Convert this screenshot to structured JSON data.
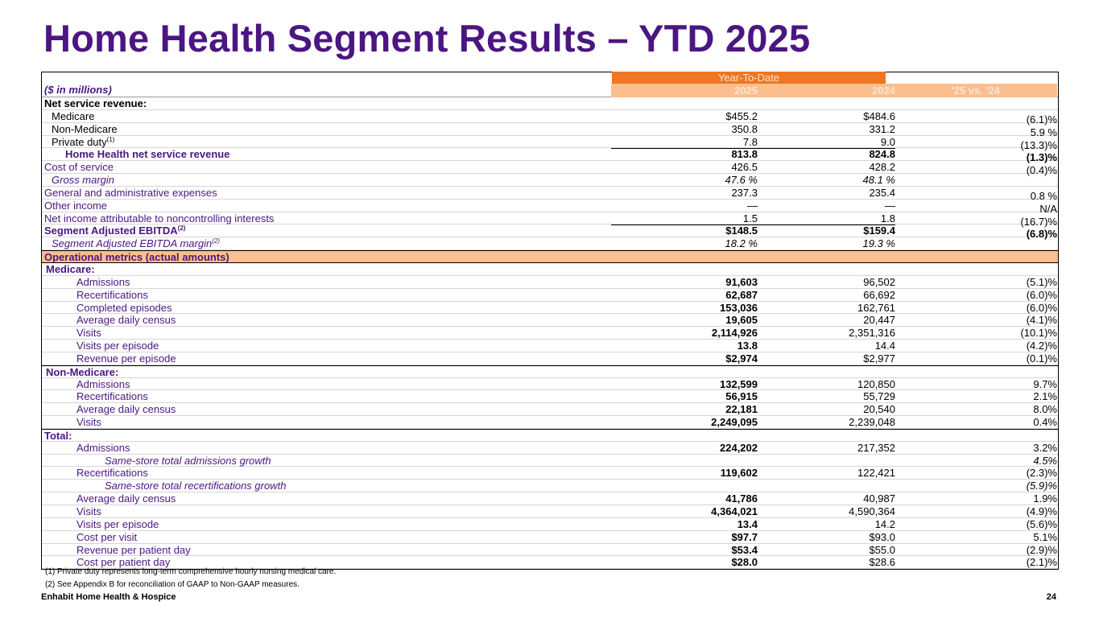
{
  "title": "Home Health Segment Results – YTD 2025",
  "header": {
    "units_label": "($ in millions)",
    "period_label": "Year-To-Date",
    "col_2025": "2025",
    "col_2024": "2024",
    "col_change": "'25 vs. '24"
  },
  "rows": [
    {
      "label": "Net service revenue:",
      "v2025": "",
      "v2024": "",
      "change": "",
      "bold": true
    },
    {
      "label": "Medicare",
      "v2025": "$455.2",
      "v2024": "$484.6",
      "change": "(6.1)%",
      "indent": 1
    },
    {
      "label": "Non-Medicare",
      "v2025": "350.8",
      "v2024": "331.2",
      "change": "5.9 %",
      "indent": 1
    },
    {
      "label": "Private duty",
      "sup": "(1)",
      "v2025": "7.8",
      "v2024": "9.0",
      "change": "(13.3)%",
      "indent": 1
    },
    {
      "label": "Home Health net service revenue",
      "v2025": "813.8",
      "v2024": "824.8",
      "change": "(1.3)%",
      "bold": true,
      "purple": true,
      "indent": 2,
      "topline": true
    },
    {
      "label": "Cost of service",
      "v2025": "426.5",
      "v2024": "428.2",
      "change": "(0.4)%",
      "purple": true
    },
    {
      "label": "Gross margin",
      "v2025": "47.6 %",
      "v2024": "48.1 %",
      "change": "",
      "italic": true,
      "purple": true,
      "indent": 1
    },
    {
      "label": "General and administrative expenses",
      "v2025": "237.3",
      "v2024": "235.4",
      "change": "0.8 %",
      "purple": true
    },
    {
      "label": "Other income",
      "v2025": "—",
      "v2024": "—",
      "change": "N/A",
      "purple": true
    },
    {
      "label": "Net income attributable to noncontrolling interests",
      "v2025": "1.5",
      "v2024": "1.8",
      "change": "(16.7)%",
      "purple": true
    },
    {
      "label": "Segment Adjusted EBITDA",
      "sup": "(2)",
      "v2025": "$148.5",
      "v2024": "$159.4",
      "change": "(6.8)%",
      "bold": true,
      "purple": true,
      "topline": true
    },
    {
      "label": "Segment Adjusted EBITDA margin",
      "sup": "(2)",
      "v2025": "18.2 %",
      "v2024": "19.3 %",
      "change": "",
      "italic": true,
      "purple": true,
      "indent": 1
    }
  ],
  "ops_label": "Operational metrics (actual amounts)",
  "sections": [
    {
      "label": "Medicare:",
      "rows": [
        {
          "label": "Admissions",
          "v2025": "91,603",
          "v2024": "96,502",
          "change": "(5.1)%"
        },
        {
          "label": "Recertifications",
          "v2025": "62,687",
          "v2024": "66,692",
          "change": "(6.0)%"
        },
        {
          "label": "Completed episodes",
          "v2025": "153,036",
          "v2024": "162,761",
          "change": "(6.0)%"
        },
        {
          "label": "Average daily census",
          "v2025": "19,605",
          "v2024": "20,447",
          "change": "(4.1)%"
        },
        {
          "label": "Visits",
          "v2025": "2,114,926",
          "v2024": "2,351,316",
          "change": "(10.1)%"
        },
        {
          "label": "Visits per episode",
          "v2025": "13.8",
          "v2024": "14.4",
          "change": "(4.2)%"
        },
        {
          "label": "Revenue per episode",
          "v2025": "$2,974",
          "v2024": "$2,977",
          "change": "(0.1)%"
        }
      ]
    },
    {
      "label": "Non-Medicare:",
      "rows": [
        {
          "label": "Admissions",
          "v2025": "132,599",
          "v2024": "120,850",
          "change": "9.7%"
        },
        {
          "label": "Recertifications",
          "v2025": "56,915",
          "v2024": "55,729",
          "change": "2.1%"
        },
        {
          "label": "Average daily census",
          "v2025": "22,181",
          "v2024": "20,540",
          "change": "8.0%"
        },
        {
          "label": "Visits",
          "v2025": "2,249,095",
          "v2024": "2,239,048",
          "change": "0.4%"
        }
      ]
    },
    {
      "label": "Total:",
      "rows": [
        {
          "label": "Admissions",
          "v2025": "224,202",
          "v2024": "217,352",
          "change": "3.2%"
        },
        {
          "label": "Same-store total admissions growth",
          "v2025": "",
          "v2024": "",
          "change": "4.5%",
          "italic": true
        },
        {
          "label": "Recertifications",
          "v2025": "119,602",
          "v2024": "122,421",
          "change": "(2.3)%"
        },
        {
          "label": "Same-store total recertifications growth",
          "v2025": "",
          "v2024": "",
          "change": "(5.9)%",
          "italic": true
        },
        {
          "label": "Average daily census",
          "v2025": "41,786",
          "v2024": "40,987",
          "change": "1.9%"
        },
        {
          "label": "Visits",
          "v2025": "4,364,021",
          "v2024": "4,590,364",
          "change": "(4.9)%"
        },
        {
          "label": "Visits per episode",
          "v2025": "13.4",
          "v2024": "14.2",
          "change": "(5.6)%"
        },
        {
          "label": "Cost per visit",
          "v2025": "$97.7",
          "v2024": "$93.0",
          "change": "5.1%"
        },
        {
          "label": "Revenue per patient day",
          "v2025": "$53.4",
          "v2024": "$55.0",
          "change": "(2.9)%"
        },
        {
          "label": "Cost per patient day",
          "v2025": "$28.0",
          "v2024": "$28.6",
          "change": "(2.1)%"
        }
      ]
    }
  ],
  "footnotes": [
    "(1) Private duty represents long-term comprehensive hourly nursing medical care.",
    "(2) See Appendix B for reconciliation of GAAP to Non-GAAP measures."
  ],
  "footer": {
    "company": "Enhabit Home Health & Hospice",
    "page_number": "24"
  }
}
